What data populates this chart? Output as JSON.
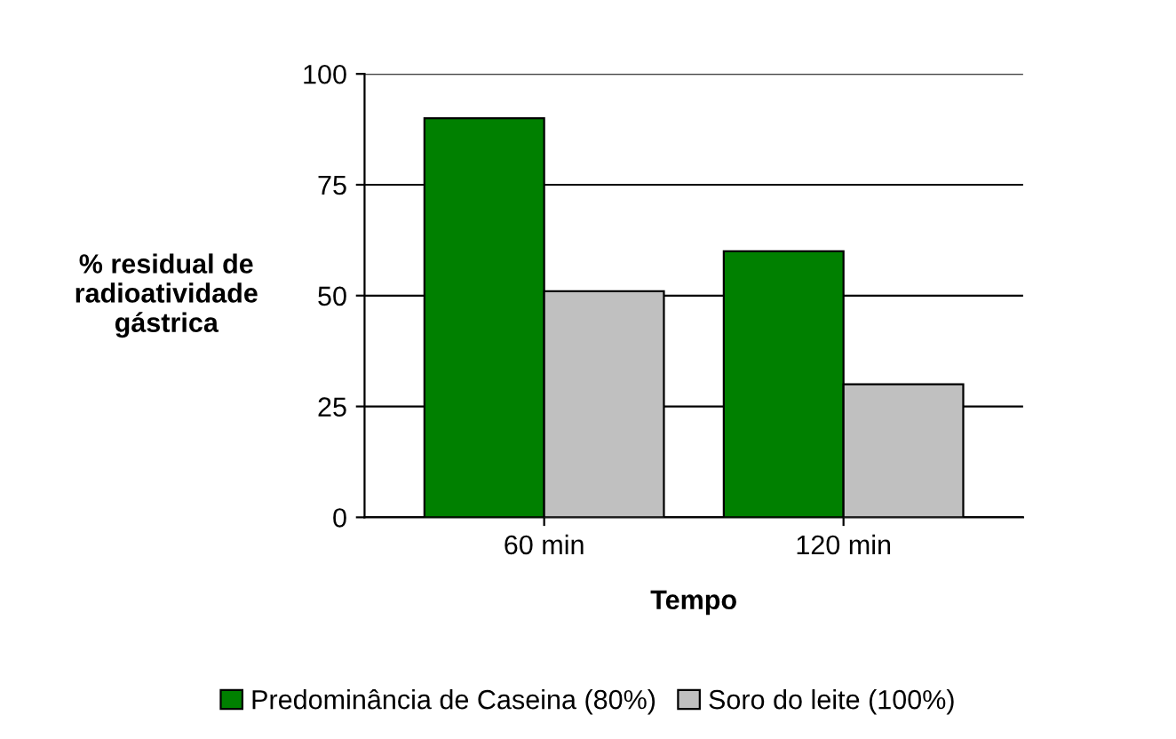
{
  "chart_data": {
    "type": "bar",
    "xlabel": "Tempo",
    "ylabel": "% residual de\nradioatividade\ngástrica",
    "categories": [
      "60 min",
      "120 min"
    ],
    "series": [
      {
        "name": "Predominância de Caseina (80%)",
        "color": "#008000",
        "values": [
          90,
          60
        ]
      },
      {
        "name": "Soro do leite (100%)",
        "color": "#c0c0c0",
        "values": [
          51,
          30
        ]
      }
    ],
    "ylim": [
      0,
      100
    ],
    "yticks": [
      0,
      25,
      50,
      75,
      100
    ],
    "grid": "y",
    "legend": "bottom"
  }
}
